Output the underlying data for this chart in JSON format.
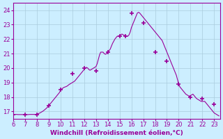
{
  "title": "",
  "xlabel": "Windchill (Refroidissement éolien,°C)",
  "ylabel": "",
  "xlim": [
    6,
    23.5
  ],
  "ylim": [
    16.5,
    24.5
  ],
  "yticks": [
    17,
    18,
    19,
    20,
    21,
    22,
    23,
    24
  ],
  "xticks": [
    6,
    7,
    8,
    9,
    10,
    11,
    12,
    13,
    14,
    15,
    16,
    17,
    18,
    19,
    20,
    21,
    22,
    23
  ],
  "bg_color": "#cceeff",
  "line_color": "#990099",
  "marker_color": "#990099",
  "hours": [
    6,
    7,
    8,
    9,
    10,
    11,
    12,
    13,
    14,
    15,
    15.5,
    16,
    17,
    18,
    19,
    20,
    21,
    22,
    23
  ],
  "temps": [
    16.8,
    16.8,
    16.8,
    17.4,
    18.5,
    19.6,
    20.0,
    19.8,
    21.1,
    22.2,
    22.2,
    23.8,
    23.1,
    21.1,
    20.5,
    18.9,
    18.0,
    17.9,
    17.5
  ],
  "curve_hours": [
    6.0,
    6.1,
    6.2,
    6.3,
    6.4,
    6.5,
    6.6,
    6.7,
    6.8,
    6.9,
    7.0,
    7.1,
    7.2,
    7.3,
    7.4,
    7.5,
    7.6,
    7.7,
    7.8,
    7.9,
    8.0,
    8.1,
    8.2,
    8.3,
    8.4,
    8.5,
    8.6,
    8.7,
    8.8,
    8.9,
    9.0,
    9.1,
    9.2,
    9.3,
    9.4,
    9.5,
    9.6,
    9.7,
    9.8,
    9.9,
    10.0,
    10.1,
    10.2,
    10.3,
    10.4,
    10.5,
    10.6,
    10.7,
    10.8,
    10.9,
    11.0,
    11.1,
    11.2,
    11.3,
    11.4,
    11.5,
    11.6,
    11.7,
    11.8,
    11.9,
    12.0,
    12.1,
    12.2,
    12.3,
    12.4,
    12.5,
    12.6,
    12.7,
    12.8,
    12.9,
    13.0,
    13.1,
    13.2,
    13.3,
    13.4,
    13.5,
    13.6,
    13.7,
    13.8,
    13.9,
    14.0,
    14.1,
    14.2,
    14.3,
    14.4,
    14.5,
    14.6,
    14.7,
    14.8,
    14.9,
    15.0,
    15.1,
    15.2,
    15.3,
    15.4,
    15.5,
    15.6,
    15.7,
    15.8,
    15.9,
    16.0,
    16.1,
    16.2,
    16.3,
    16.4,
    16.5,
    16.6,
    16.7,
    16.8,
    16.9,
    17.0,
    17.1,
    17.2,
    17.3,
    17.4,
    17.5,
    17.6,
    17.7,
    17.8,
    17.9,
    18.0,
    18.1,
    18.2,
    18.3,
    18.4,
    18.5,
    18.6,
    18.7,
    18.8,
    18.9,
    19.0,
    19.1,
    19.2,
    19.3,
    19.4,
    19.5,
    19.6,
    19.7,
    19.8,
    19.9,
    20.0,
    20.1,
    20.2,
    20.3,
    20.4,
    20.5,
    20.6,
    20.7,
    20.8,
    20.9,
    21.0,
    21.1,
    21.2,
    21.3,
    21.4,
    21.5,
    21.6,
    21.7,
    21.8,
    21.9,
    22.0,
    22.1,
    22.2,
    22.3,
    22.4,
    22.5,
    22.6,
    22.7,
    22.8,
    22.9,
    23.0,
    23.1,
    23.2,
    23.3,
    23.4
  ],
  "curve_temps": [
    16.8,
    16.8,
    16.8,
    16.8,
    16.79,
    16.79,
    16.79,
    16.79,
    16.79,
    16.79,
    16.79,
    16.79,
    16.79,
    16.79,
    16.8,
    16.8,
    16.8,
    16.8,
    16.8,
    16.8,
    16.82,
    16.85,
    16.88,
    16.92,
    16.97,
    17.02,
    17.08,
    17.15,
    17.22,
    17.3,
    17.4,
    17.5,
    17.6,
    17.7,
    17.8,
    17.9,
    18.0,
    18.1,
    18.2,
    18.3,
    18.45,
    18.55,
    18.62,
    18.67,
    18.7,
    18.73,
    18.78,
    18.85,
    18.9,
    18.95,
    19.0,
    19.05,
    19.1,
    19.2,
    19.3,
    19.4,
    19.5,
    19.6,
    19.7,
    19.8,
    19.9,
    20.0,
    20.05,
    20.0,
    19.9,
    19.85,
    19.9,
    19.95,
    20.0,
    20.05,
    20.1,
    20.3,
    20.6,
    20.9,
    21.1,
    21.1,
    21.1,
    21.0,
    20.95,
    21.0,
    21.1,
    21.2,
    21.3,
    21.5,
    21.7,
    21.85,
    22.0,
    22.1,
    22.2,
    22.2,
    22.25,
    22.3,
    22.35,
    22.3,
    22.25,
    22.2,
    22.2,
    22.2,
    22.3,
    22.5,
    22.8,
    23.0,
    23.2,
    23.4,
    23.6,
    23.8,
    23.85,
    23.8,
    23.7,
    23.6,
    23.5,
    23.4,
    23.3,
    23.2,
    23.1,
    23.0,
    22.9,
    22.8,
    22.7,
    22.6,
    22.5,
    22.4,
    22.3,
    22.2,
    22.1,
    22.0,
    21.9,
    21.7,
    21.5,
    21.3,
    21.1,
    20.9,
    20.7,
    20.5,
    20.3,
    20.1,
    19.9,
    19.7,
    19.5,
    19.2,
    18.9,
    18.7,
    18.6,
    18.5,
    18.4,
    18.3,
    18.2,
    18.15,
    18.1,
    18.05,
    18.1,
    18.15,
    18.2,
    18.1,
    18.0,
    17.9,
    17.85,
    17.8,
    17.75,
    17.7,
    17.7,
    17.7,
    17.7,
    17.6,
    17.5,
    17.4,
    17.3,
    17.2,
    17.1,
    17.0,
    16.9,
    16.85,
    16.8,
    16.75,
    16.7
  ]
}
